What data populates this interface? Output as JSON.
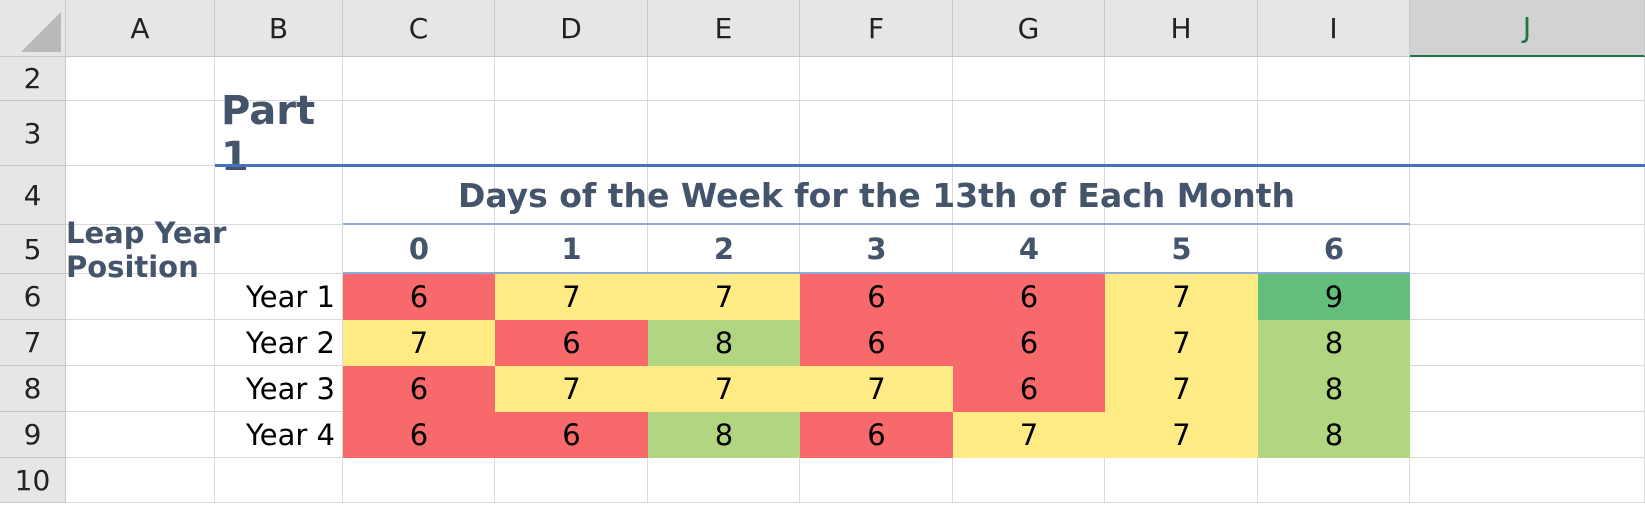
{
  "columns": [
    "A",
    "B",
    "C",
    "D",
    "E",
    "F",
    "G",
    "H",
    "I",
    "J"
  ],
  "selected_column": "J",
  "rows": [
    "2",
    "3",
    "4",
    "5",
    "6",
    "7",
    "8",
    "9",
    "10"
  ],
  "sheet": {
    "title": "Part 1",
    "heading": "Days of the Week for the 13th of Each Month",
    "leap_label": "Leap Year Position",
    "positions": [
      "0",
      "1",
      "2",
      "3",
      "4",
      "5",
      "6"
    ],
    "years": [
      {
        "label": "Year 1",
        "values": [
          6,
          7,
          7,
          6,
          6,
          7,
          9
        ]
      },
      {
        "label": "Year 2",
        "values": [
          7,
          6,
          8,
          6,
          6,
          7,
          8
        ]
      },
      {
        "label": "Year 3",
        "values": [
          6,
          7,
          7,
          7,
          6,
          7,
          8
        ]
      },
      {
        "label": "Year 4",
        "values": [
          6,
          6,
          8,
          6,
          7,
          7,
          8
        ]
      }
    ]
  },
  "colors": {
    "red": "#f8696b",
    "yellow": "#ffeb84",
    "light_green": "#b1d580",
    "green": "#63be7b",
    "header_text": "#44546a",
    "title_rule": "#4472c4",
    "heading_rule": "#8ea9db"
  }
}
